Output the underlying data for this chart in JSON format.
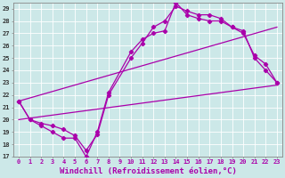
{
  "xlabel": "Windchill (Refroidissement éolien,°C)",
  "xlim": [
    -0.5,
    23.5
  ],
  "ylim": [
    17,
    29.5
  ],
  "xticks": [
    0,
    1,
    2,
    3,
    4,
    5,
    6,
    7,
    8,
    9,
    10,
    11,
    12,
    13,
    14,
    15,
    16,
    17,
    18,
    19,
    20,
    21,
    22,
    23
  ],
  "yticks": [
    17,
    18,
    19,
    20,
    21,
    22,
    23,
    24,
    25,
    26,
    27,
    28,
    29
  ],
  "bg_color": "#cce8e8",
  "line_color": "#aa00aa",
  "grid_color": "#ffffff",
  "line1_x": [
    0,
    1,
    2,
    3,
    4,
    5,
    6,
    7,
    8,
    10,
    11,
    12,
    13,
    14,
    15,
    16,
    17,
    18,
    19,
    20,
    21,
    22,
    23
  ],
  "line1_y": [
    21.5,
    20.0,
    19.5,
    19.0,
    18.5,
    18.5,
    17.0,
    19.0,
    22.2,
    25.5,
    26.5,
    27.0,
    27.2,
    29.5,
    28.5,
    28.2,
    28.0,
    28.0,
    27.5,
    27.2,
    25.0,
    24.0,
    23.0
  ],
  "line2_x": [
    0,
    1,
    2,
    3,
    4,
    5,
    6,
    7,
    8,
    10,
    11,
    12,
    13,
    14,
    15,
    16,
    17,
    18,
    19,
    20,
    21,
    22,
    23
  ],
  "line2_y": [
    21.5,
    20.0,
    19.7,
    19.5,
    19.2,
    18.7,
    17.5,
    18.8,
    22.0,
    25.0,
    26.2,
    27.5,
    28.0,
    29.2,
    28.8,
    28.5,
    28.5,
    28.2,
    27.5,
    27.0,
    25.2,
    24.5,
    23.0
  ],
  "line3_x": [
    0,
    23
  ],
  "line3_y": [
    20.0,
    22.8
  ],
  "line4_x": [
    0,
    23
  ],
  "line4_y": [
    21.5,
    27.5
  ],
  "marker": "D",
  "marker_size": 2.2,
  "linewidth": 0.9,
  "tick_fontsize": 5,
  "xlabel_fontsize": 6.5
}
